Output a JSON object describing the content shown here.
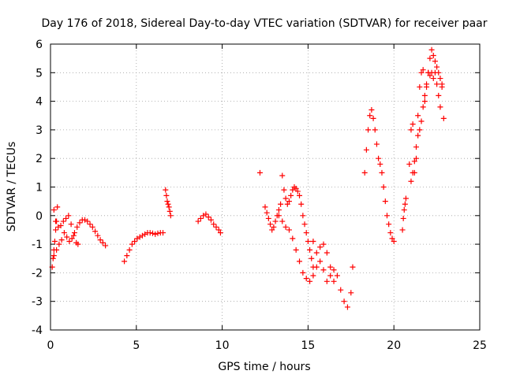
{
  "chart_data": {
    "type": "scatter",
    "title": "Day 176 of 2018, Sidereal Day-to-day VTEC variation (SDTVAR) for receiver paar",
    "xlabel": "GPS time / hours",
    "ylabel": "SDTVAR / TECUs",
    "xlim": [
      0,
      25
    ],
    "ylim": [
      -4,
      6
    ],
    "xticks": [
      0,
      5,
      10,
      15,
      20,
      25
    ],
    "yticks": [
      -4,
      -3,
      -2,
      -1,
      0,
      1,
      2,
      3,
      4,
      5,
      6
    ],
    "grid": true,
    "marker": "+",
    "color": "#ff0000",
    "segments": [
      {
        "name": "seg-a",
        "x": [
          0.1,
          0.15,
          0.2,
          0.25,
          0.3,
          0.35,
          0.4
        ],
        "y": [
          -1.8,
          -1.5,
          -1.2,
          -0.9,
          -0.5,
          -0.2,
          0.3
        ]
      },
      {
        "name": "seg-b",
        "x": [
          0.2,
          0.3,
          0.45,
          0.6,
          0.75,
          0.9,
          1.05,
          1.2,
          1.35,
          1.5,
          1.6
        ],
        "y": [
          0.2,
          -0.2,
          -0.4,
          -0.35,
          -0.2,
          -0.1,
          0.0,
          -0.3,
          -0.7,
          -0.95,
          -1.0
        ]
      },
      {
        "name": "seg-c",
        "x": [
          0.2,
          0.35,
          0.5,
          0.65,
          0.8,
          0.95,
          1.1,
          1.25,
          1.4,
          1.55,
          1.7,
          1.85,
          2.0,
          2.15,
          2.3,
          2.45,
          2.6,
          2.75,
          2.9,
          3.05,
          3.2
        ],
        "y": [
          -1.4,
          -1.2,
          -1.0,
          -0.85,
          -0.6,
          -0.75,
          -0.9,
          -0.8,
          -0.6,
          -0.4,
          -0.25,
          -0.15,
          -0.15,
          -0.2,
          -0.3,
          -0.4,
          -0.55,
          -0.7,
          -0.85,
          -0.95,
          -1.05
        ]
      },
      {
        "name": "seg-d",
        "x": [
          4.3,
          4.45,
          4.6,
          4.75,
          4.9,
          5.05,
          5.2,
          5.35,
          5.5,
          5.65,
          5.8,
          5.95,
          6.1,
          6.25,
          6.4,
          6.55
        ],
        "y": [
          -1.6,
          -1.4,
          -1.2,
          -1.0,
          -0.9,
          -0.8,
          -0.75,
          -0.7,
          -0.65,
          -0.6,
          -0.6,
          -0.62,
          -0.65,
          -0.62,
          -0.6,
          -0.6
        ]
      },
      {
        "name": "seg-e",
        "x": [
          6.7,
          6.75,
          6.8,
          6.85,
          6.9,
          6.95,
          7.0
        ],
        "y": [
          0.9,
          0.7,
          0.5,
          0.4,
          0.3,
          0.15,
          0.0
        ]
      },
      {
        "name": "seg-f",
        "x": [
          8.6,
          8.75,
          8.9,
          9.05,
          9.2,
          9.35,
          9.5,
          9.65,
          9.8,
          9.9
        ],
        "y": [
          -0.2,
          -0.1,
          0.0,
          0.05,
          -0.05,
          -0.15,
          -0.3,
          -0.4,
          -0.5,
          -0.6
        ]
      },
      {
        "name": "seg-g",
        "x": [
          12.2
        ],
        "y": [
          1.5
        ]
      },
      {
        "name": "seg-h",
        "x": [
          12.5,
          12.6,
          12.7,
          12.8,
          12.9,
          13.0,
          13.1,
          13.2,
          13.3,
          13.4
        ],
        "y": [
          0.3,
          0.1,
          -0.1,
          -0.3,
          -0.5,
          -0.4,
          -0.2,
          0.0,
          0.2,
          0.4
        ]
      },
      {
        "name": "seg-i",
        "x": [
          13.5,
          13.6,
          13.7,
          13.8,
          13.9,
          14.0,
          14.1,
          14.2,
          14.3,
          14.4,
          14.5,
          14.6,
          14.7,
          14.8,
          14.9,
          15.0,
          15.1,
          15.2,
          15.3
        ],
        "y": [
          1.4,
          0.9,
          0.6,
          0.4,
          0.5,
          0.7,
          0.9,
          1.0,
          0.95,
          0.85,
          0.7,
          0.4,
          0.0,
          -0.3,
          -0.6,
          -0.9,
          -1.2,
          -1.5,
          -1.8
        ]
      },
      {
        "name": "seg-j",
        "x": [
          13.3,
          13.5,
          13.7,
          13.9,
          14.1,
          14.3,
          14.5,
          14.7,
          14.9,
          15.1,
          15.3,
          15.5,
          15.7,
          15.9,
          16.1,
          16.3,
          16.5,
          16.7,
          16.9,
          17.1,
          17.3,
          17.5,
          17.6
        ],
        "y": [
          0.0,
          -0.2,
          -0.4,
          -0.5,
          -0.8,
          -1.2,
          -1.6,
          -2.0,
          -2.2,
          -2.3,
          -2.1,
          -1.8,
          -1.6,
          -1.9,
          -2.3,
          -2.1,
          -1.9,
          -2.1,
          -2.6,
          -3.0,
          -3.2,
          -2.7,
          -1.8
        ]
      },
      {
        "name": "seg-k",
        "x": [
          15.3,
          15.5,
          15.7,
          15.9,
          16.1,
          16.3,
          16.5
        ],
        "y": [
          -0.9,
          -1.3,
          -1.1,
          -1.0,
          -1.3,
          -1.8,
          -2.3
        ]
      },
      {
        "name": "seg-l",
        "x": [
          18.3,
          18.4,
          18.5,
          18.6,
          18.7,
          18.8,
          18.9,
          19.0,
          19.1,
          19.2,
          19.3,
          19.4,
          19.5,
          19.6,
          19.7,
          19.8,
          19.9,
          20.0
        ],
        "y": [
          1.5,
          2.3,
          3.0,
          3.5,
          3.7,
          3.4,
          3.0,
          2.5,
          2.0,
          1.8,
          1.5,
          1.0,
          0.5,
          0.0,
          -0.3,
          -0.6,
          -0.8,
          -0.9
        ]
      },
      {
        "name": "seg-m",
        "x": [
          20.5,
          20.55,
          20.6,
          20.65,
          20.7
        ],
        "y": [
          -0.5,
          -0.1,
          0.2,
          0.4,
          0.6
        ]
      },
      {
        "name": "seg-n",
        "x": [
          20.9,
          21.0,
          21.1,
          21.2,
          21.3,
          21.4,
          21.5,
          21.6,
          21.7,
          21.8,
          21.9,
          22.0,
          22.1,
          22.2,
          22.3,
          22.4,
          22.5,
          22.6,
          22.7,
          22.8,
          22.9
        ],
        "y": [
          1.8,
          3.0,
          3.2,
          1.5,
          2.0,
          3.5,
          4.5,
          5.0,
          5.1,
          4.0,
          4.5,
          5.0,
          4.9,
          5.0,
          4.8,
          5.0,
          4.6,
          4.2,
          3.8,
          4.5,
          3.4
        ]
      },
      {
        "name": "seg-o",
        "x": [
          21.0,
          21.1,
          21.2,
          21.3,
          21.4,
          21.5,
          21.6,
          21.7,
          21.8,
          21.9,
          22.0,
          22.1,
          22.2,
          22.3,
          22.4,
          22.5,
          22.6,
          22.7,
          22.8
        ],
        "y": [
          1.2,
          1.5,
          1.9,
          2.4,
          2.8,
          3.0,
          3.3,
          3.8,
          4.2,
          4.6,
          5.0,
          5.5,
          5.8,
          5.6,
          5.4,
          5.2,
          5.0,
          4.8,
          4.6
        ]
      }
    ]
  }
}
